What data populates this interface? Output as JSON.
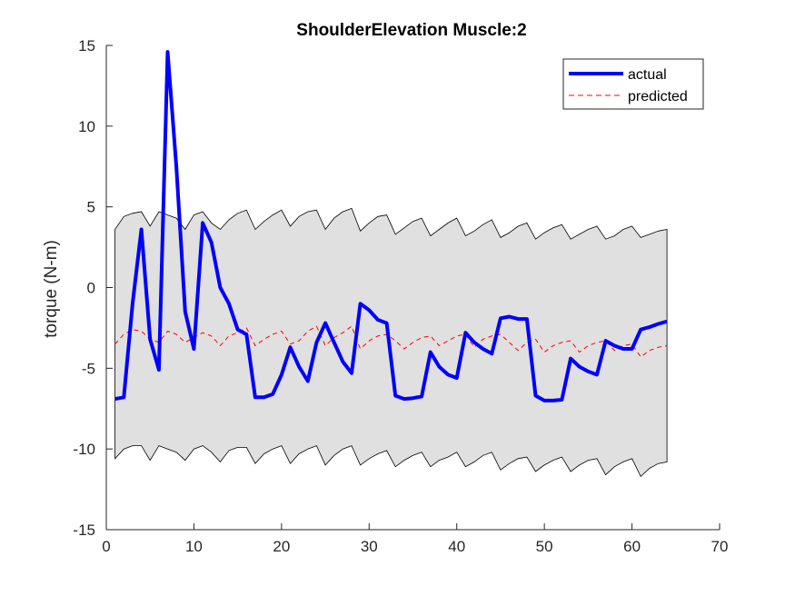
{
  "chart_data": {
    "type": "line",
    "title": "ShoulderElevation Muscle:2",
    "xlabel": "",
    "ylabel": "torque (N-m)",
    "xlim": [
      0,
      70
    ],
    "ylim": [
      -15,
      15
    ],
    "xticks": [
      0,
      10,
      20,
      30,
      40,
      50,
      60,
      70
    ],
    "yticks": [
      -15,
      -10,
      -5,
      0,
      5,
      10,
      15
    ],
    "legend": {
      "position": "top-right"
    },
    "x": [
      1,
      2,
      3,
      4,
      5,
      6,
      7,
      8,
      9,
      10,
      11,
      12,
      13,
      14,
      15,
      16,
      17,
      18,
      19,
      20,
      21,
      22,
      23,
      24,
      25,
      26,
      27,
      28,
      29,
      30,
      31,
      32,
      33,
      34,
      35,
      36,
      37,
      38,
      39,
      40,
      41,
      42,
      43,
      44,
      45,
      46,
      47,
      48,
      49,
      50,
      51,
      52,
      53,
      54,
      55,
      56,
      57,
      58,
      59,
      60,
      61,
      62,
      63,
      64
    ],
    "series": [
      {
        "name": "actual",
        "color": "#0000ff",
        "style": "solid",
        "values": [
          -6.9,
          -6.8,
          -1.0,
          3.6,
          -3.2,
          -5.1,
          14.6,
          7.5,
          -1.5,
          -3.8,
          4.0,
          2.8,
          0.0,
          -1.0,
          -2.6,
          -2.9,
          -6.8,
          -6.8,
          -6.6,
          -5.4,
          -3.7,
          -4.9,
          -5.8,
          -3.4,
          -2.2,
          -3.4,
          -4.6,
          -5.3,
          -1.0,
          -1.4,
          -2.0,
          -2.2,
          -6.7,
          -6.9,
          -6.85,
          -6.75,
          -4.0,
          -4.9,
          -5.4,
          -5.6,
          -2.8,
          -3.4,
          -3.8,
          -4.1,
          -1.9,
          -1.8,
          -1.95,
          -1.95,
          -6.7,
          -7.0,
          -7.0,
          -6.95,
          -4.4,
          -4.9,
          -5.2,
          -5.4,
          -3.3,
          -3.6,
          -3.8,
          -3.8,
          -2.6,
          -2.45,
          -2.25,
          -2.1
        ]
      },
      {
        "name": "predicted",
        "color": "#ff0000",
        "style": "dashed",
        "values": [
          -3.5,
          -2.9,
          -2.6,
          -2.7,
          -3.2,
          -3.4,
          -2.7,
          -2.9,
          -3.4,
          -3.1,
          -2.8,
          -3.0,
          -3.6,
          -3.0,
          -2.8,
          -2.5,
          -3.6,
          -3.2,
          -2.9,
          -2.7,
          -3.5,
          -3.3,
          -2.7,
          -2.4,
          -3.6,
          -3.1,
          -2.8,
          -2.4,
          -3.8,
          -3.3,
          -3.0,
          -2.9,
          -3.3,
          -3.8,
          -3.4,
          -3.1,
          -3.0,
          -3.6,
          -3.3,
          -3.0,
          -2.9,
          -3.7,
          -3.2,
          -3.0,
          -2.9,
          -3.4,
          -3.9,
          -3.4,
          -3.2,
          -4.0,
          -3.6,
          -3.4,
          -3.3,
          -4.0,
          -3.6,
          -3.4,
          -3.3,
          -3.9,
          -3.6,
          -3.5,
          -4.3,
          -3.9,
          -3.7,
          -3.6
        ]
      }
    ],
    "band": {
      "fill": "#e0e0e0",
      "upper": [
        3.6,
        4.4,
        4.6,
        4.7,
        3.8,
        4.7,
        4.5,
        4.3,
        3.6,
        4.5,
        4.7,
        4.0,
        3.6,
        4.2,
        4.6,
        4.8,
        3.6,
        4.1,
        4.5,
        4.8,
        3.8,
        4.4,
        4.7,
        4.8,
        3.6,
        4.3,
        4.7,
        4.9,
        3.5,
        4.0,
        4.4,
        4.5,
        3.3,
        3.7,
        4.1,
        4.3,
        3.2,
        3.6,
        4.0,
        4.3,
        3.2,
        3.5,
        3.9,
        4.2,
        3.1,
        3.4,
        3.8,
        4.0,
        3.0,
        3.4,
        3.7,
        3.9,
        3.0,
        3.3,
        3.6,
        3.8,
        3.0,
        3.2,
        3.6,
        3.8,
        3.1,
        3.3,
        3.5,
        3.6
      ],
      "lower": [
        -10.6,
        -10.0,
        -9.8,
        -9.8,
        -10.7,
        -9.8,
        -10.0,
        -10.2,
        -10.7,
        -10.0,
        -9.8,
        -10.2,
        -10.8,
        -10.1,
        -9.9,
        -9.9,
        -10.9,
        -10.3,
        -10.0,
        -9.8,
        -10.9,
        -10.3,
        -10.0,
        -9.8,
        -11.0,
        -10.4,
        -10.0,
        -9.8,
        -11.0,
        -10.6,
        -10.3,
        -10.1,
        -11.1,
        -10.7,
        -10.4,
        -10.2,
        -11.1,
        -10.7,
        -10.5,
        -10.2,
        -11.1,
        -10.8,
        -10.4,
        -10.2,
        -11.3,
        -10.9,
        -10.6,
        -10.5,
        -11.4,
        -11.0,
        -10.7,
        -10.5,
        -11.4,
        -11.0,
        -10.7,
        -10.6,
        -11.6,
        -11.1,
        -10.8,
        -10.6,
        -11.7,
        -11.2,
        -10.9,
        -10.8
      ]
    }
  }
}
